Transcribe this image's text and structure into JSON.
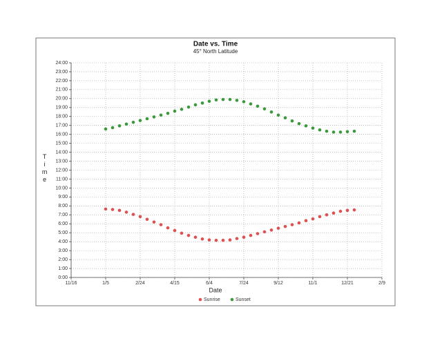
{
  "chart_data": {
    "type": "scatter",
    "title": "Date vs. Time",
    "subtitle": "45° North Latitude",
    "x_label": "Date",
    "y_label": "Time",
    "x": [
      5,
      15,
      25,
      35,
      45,
      55,
      65,
      75,
      85,
      95,
      105,
      115,
      125,
      135,
      145,
      155,
      165,
      175,
      185,
      195,
      205,
      215,
      225,
      235,
      245,
      255,
      265,
      275,
      285,
      295,
      305,
      315,
      325,
      335,
      345,
      355,
      365
    ],
    "series": [
      {
        "name": "Sunrise",
        "color": "#e05050",
        "values": [
          7.65,
          7.6,
          7.5,
          7.3,
          7.05,
          6.8,
          6.5,
          6.2,
          5.9,
          5.55,
          5.25,
          4.95,
          4.7,
          4.5,
          4.3,
          4.2,
          4.15,
          4.15,
          4.2,
          4.35,
          4.5,
          4.7,
          4.9,
          5.1,
          5.3,
          5.5,
          5.7,
          5.9,
          6.1,
          6.35,
          6.55,
          6.8,
          7.0,
          7.2,
          7.4,
          7.5,
          7.55
        ]
      },
      {
        "name": "Sunset",
        "color": "#3a9a3a",
        "values": [
          16.6,
          16.75,
          16.95,
          17.15,
          17.35,
          17.55,
          17.75,
          17.95,
          18.15,
          18.35,
          18.6,
          18.8,
          19.05,
          19.3,
          19.5,
          19.7,
          19.85,
          19.9,
          19.9,
          19.8,
          19.65,
          19.4,
          19.15,
          18.85,
          18.5,
          18.15,
          17.85,
          17.5,
          17.2,
          16.95,
          16.7,
          16.5,
          16.35,
          16.25,
          16.25,
          16.3,
          16.35
        ]
      }
    ],
    "xlim": [
      -45,
      405
    ],
    "xticks": [
      {
        "value": -45,
        "label": "11/16"
      },
      {
        "value": 5,
        "label": "1/5"
      },
      {
        "value": 55,
        "label": "2/24"
      },
      {
        "value": 105,
        "label": "4/15"
      },
      {
        "value": 155,
        "label": "6/4"
      },
      {
        "value": 205,
        "label": "7/24"
      },
      {
        "value": 255,
        "label": "9/12"
      },
      {
        "value": 305,
        "label": "11/1"
      },
      {
        "value": 355,
        "label": "12/21"
      },
      {
        "value": 405,
        "label": "2/9"
      }
    ],
    "ylim": [
      0,
      24
    ],
    "yticks": [
      {
        "value": 0,
        "label": "0:00"
      },
      {
        "value": 1,
        "label": "1:00"
      },
      {
        "value": 2,
        "label": "2:00"
      },
      {
        "value": 3,
        "label": "3:00"
      },
      {
        "value": 4,
        "label": "4:00"
      },
      {
        "value": 5,
        "label": "5:00"
      },
      {
        "value": 6,
        "label": "6:00"
      },
      {
        "value": 7,
        "label": "7:00"
      },
      {
        "value": 8,
        "label": "8:00"
      },
      {
        "value": 9,
        "label": "9:00"
      },
      {
        "value": 10,
        "label": "10:00"
      },
      {
        "value": 11,
        "label": "11:00"
      },
      {
        "value": 12,
        "label": "12:00"
      },
      {
        "value": 13,
        "label": "13:00"
      },
      {
        "value": 14,
        "label": "14:00"
      },
      {
        "value": 15,
        "label": "15:00"
      },
      {
        "value": 16,
        "label": "16:00"
      },
      {
        "value": 17,
        "label": "17:00"
      },
      {
        "value": 18,
        "label": "18:00"
      },
      {
        "value": 19,
        "label": "19:00"
      },
      {
        "value": 20,
        "label": "20:00"
      },
      {
        "value": 21,
        "label": "21:00"
      },
      {
        "value": 22,
        "label": "22:00"
      },
      {
        "value": 23,
        "label": "23:00"
      },
      {
        "value": 24,
        "label": "24:00"
      }
    ],
    "grid": true,
    "legend": "bottom"
  }
}
